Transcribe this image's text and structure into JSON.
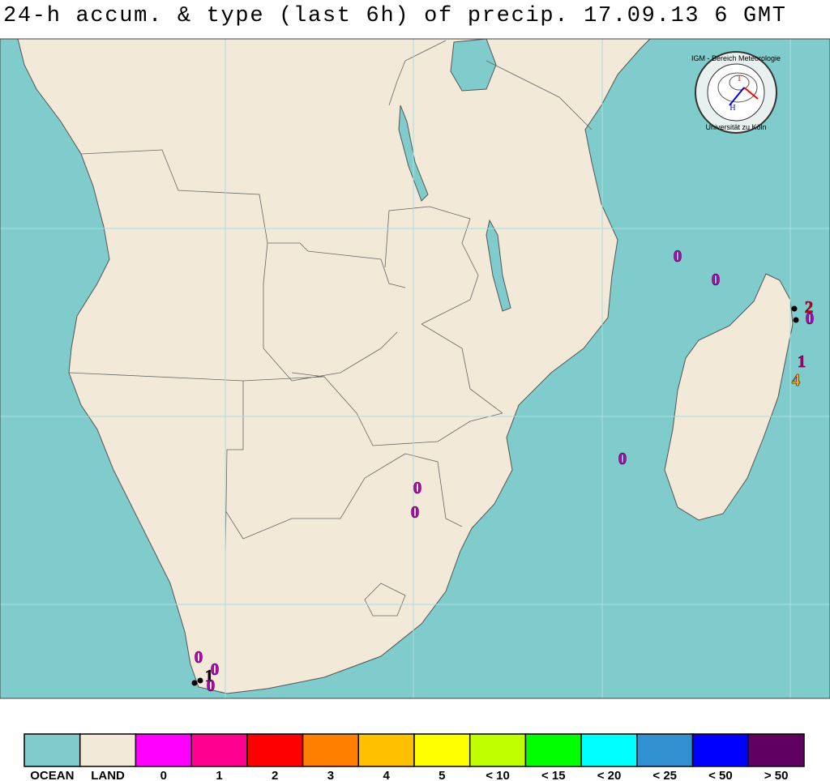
{
  "header": {
    "title": "24-h accum. & type (last 6h) of precip. 17.09.13 6  GMT"
  },
  "logo": {
    "top": "IGM - Bereich Meteorologie",
    "bottom": "Universität zu Köln",
    "high": "H",
    "low": "T"
  },
  "stations": [
    {
      "value": 0,
      "color": "#c000c0"
    },
    {
      "value": 0,
      "color": "#c000c0"
    },
    {
      "value": 2,
      "color": "#e00000"
    },
    {
      "value": 0,
      "color": "#c000c0"
    },
    {
      "value": 1,
      "color": "#b00070"
    },
    {
      "value": 4,
      "color": "#ffb000"
    },
    {
      "value": 0,
      "color": "#c000c0"
    },
    {
      "value": 0,
      "color": "#c000c0"
    },
    {
      "value": 0,
      "color": "#c000c0"
    },
    {
      "value": 0,
      "color": "#c000c0"
    },
    {
      "value": 0,
      "color": "#c000c0"
    },
    {
      "value": 1,
      "color": "#000000"
    },
    {
      "value": 0,
      "color": "#c000c0"
    }
  ],
  "legend": [
    {
      "label": "OCEAN",
      "color": "#80cccc"
    },
    {
      "label": "LAND",
      "color": "#f2e9d9"
    },
    {
      "label": "0",
      "color": "#ff00ff"
    },
    {
      "label": "1",
      "color": "#ff0090"
    },
    {
      "label": "2",
      "color": "#ff0000"
    },
    {
      "label": "3",
      "color": "#ff8000"
    },
    {
      "label": "4",
      "color": "#ffc000"
    },
    {
      "label": "5",
      "color": "#ffff00"
    },
    {
      "label": "< 10",
      "color": "#c0ff00"
    },
    {
      "label": "< 15",
      "color": "#00ff00"
    },
    {
      "label": "< 20",
      "color": "#00ffff"
    },
    {
      "label": "< 25",
      "color": "#3090d0"
    },
    {
      "label": "< 50",
      "color": "#0000ff"
    },
    {
      "label": "> 50",
      "color": "#600060"
    }
  ]
}
